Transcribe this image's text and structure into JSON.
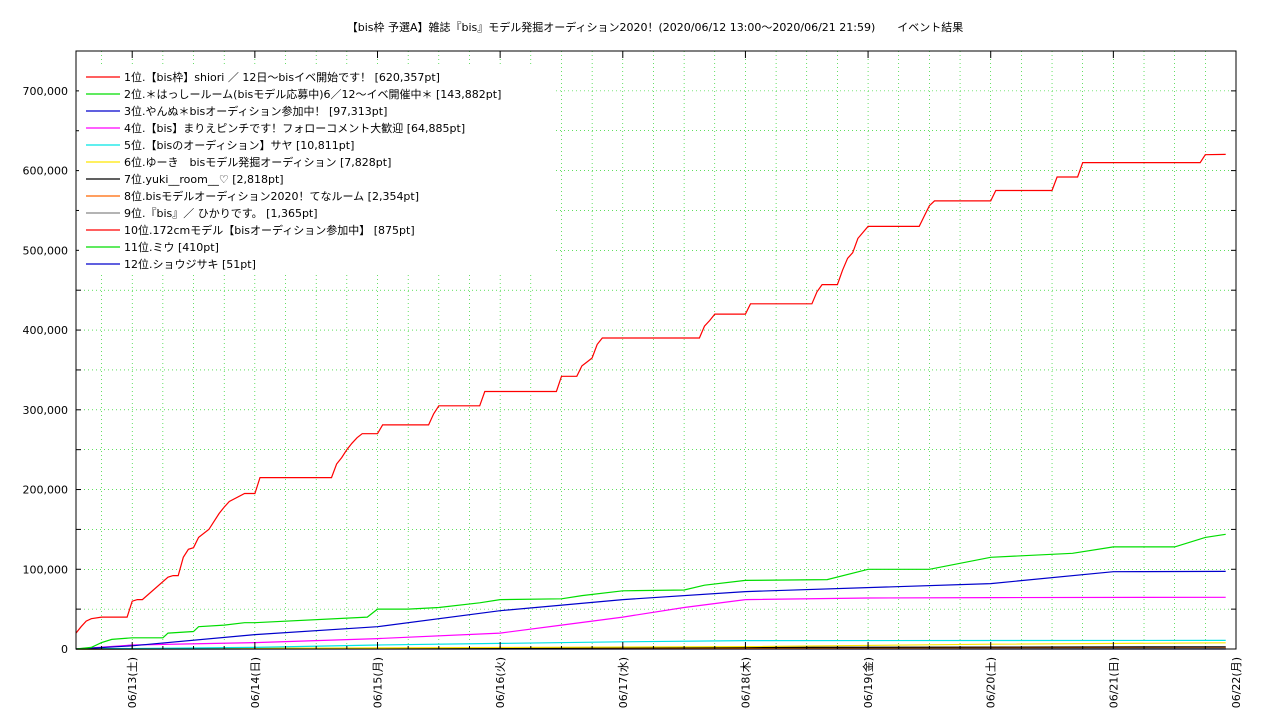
{
  "chart_data": {
    "type": "line",
    "title": "【bis枠 予選A】雑誌『bis』モデル発掘オーディション2020！(2020/06/12 13:00～2020/06/21 21:59)　　イベント結果",
    "xlabel": "",
    "ylabel": "",
    "ylim": [
      0,
      750000
    ],
    "yticks": [
      0,
      100000,
      200000,
      300000,
      400000,
      500000,
      600000,
      700000
    ],
    "ytick_labels": [
      "0",
      "100,000",
      "200,000",
      "300,000",
      "400,000",
      "500,000",
      "600,000",
      "700,000"
    ],
    "xlim": [
      "2020-06-12 13:00",
      "2020-06-22 00:00"
    ],
    "xticks": [
      "2020-06-13 00:00",
      "2020-06-14 00:00",
      "2020-06-15 00:00",
      "2020-06-16 00:00",
      "2020-06-17 00:00",
      "2020-06-18 00:00",
      "2020-06-19 00:00",
      "2020-06-20 00:00",
      "2020-06-21 00:00",
      "2020-06-22 00:00"
    ],
    "xtick_labels": [
      "06/13(土)",
      "06/14(日)",
      "06/15(月)",
      "06/16(火)",
      "06/17(水)",
      "06/18(木)",
      "06/19(金)",
      "06/20(土)",
      "06/21(日)",
      "06/22(月)"
    ],
    "grid": true,
    "legend_position": "top-left",
    "series": [
      {
        "name": "1位.【bis枠】shiori ／ 12日〜bisイベ開始です！ [620,357pt]",
        "color": "#ff0000",
        "x": [
          "2020-06-12 13:00",
          "2020-06-12 14:00",
          "2020-06-12 15:00",
          "2020-06-12 16:00",
          "2020-06-12 18:00",
          "2020-06-12 23:00",
          "2020-06-13 00:00",
          "2020-06-13 01:00",
          "2020-06-13 02:00",
          "2020-06-13 07:00",
          "2020-06-13 08:00",
          "2020-06-13 09:00",
          "2020-06-13 10:00",
          "2020-06-13 11:00",
          "2020-06-13 12:00",
          "2020-06-13 13:00",
          "2020-06-13 15:00",
          "2020-06-13 17:00",
          "2020-06-13 18:00",
          "2020-06-13 19:00",
          "2020-06-13 22:00",
          "2020-06-14 00:00",
          "2020-06-14 01:00",
          "2020-06-14 15:00",
          "2020-06-14 16:00",
          "2020-06-14 17:00",
          "2020-06-14 18:00",
          "2020-06-14 19:00",
          "2020-06-14 20:00",
          "2020-06-14 21:00",
          "2020-06-15 00:00",
          "2020-06-15 01:00",
          "2020-06-15 10:00",
          "2020-06-15 11:00",
          "2020-06-15 12:00",
          "2020-06-15 20:00",
          "2020-06-15 21:00",
          "2020-06-16 00:00",
          "2020-06-16 01:00",
          "2020-06-16 11:00",
          "2020-06-16 12:00",
          "2020-06-16 15:00",
          "2020-06-16 16:00",
          "2020-06-16 17:00",
          "2020-06-16 18:00",
          "2020-06-16 19:00",
          "2020-06-16 20:00",
          "2020-06-17 15:00",
          "2020-06-17 16:00",
          "2020-06-17 17:00",
          "2020-06-17 18:00",
          "2020-06-18 00:00",
          "2020-06-18 01:00",
          "2020-06-18 13:00",
          "2020-06-18 14:00",
          "2020-06-18 15:00",
          "2020-06-18 18:00",
          "2020-06-18 19:00",
          "2020-06-18 20:00",
          "2020-06-18 21:00",
          "2020-06-18 22:00",
          "2020-06-19 00:00",
          "2020-06-19 10:00",
          "2020-06-19 11:00",
          "2020-06-19 12:00",
          "2020-06-19 13:00",
          "2020-06-19 14:00",
          "2020-06-20 00:00",
          "2020-06-20 01:00",
          "2020-06-20 12:00",
          "2020-06-20 13:00",
          "2020-06-20 17:00",
          "2020-06-20 18:00",
          "2020-06-21 17:00",
          "2020-06-21 18:00",
          "2020-06-21 21:59"
        ],
        "values": [
          20000,
          28000,
          35000,
          38000,
          40000,
          40000,
          60000,
          62000,
          62000,
          90000,
          92000,
          92000,
          115000,
          125000,
          127000,
          140000,
          150000,
          170000,
          178000,
          185000,
          195000,
          195000,
          215000,
          215000,
          232000,
          240000,
          250000,
          258000,
          265000,
          270000,
          270000,
          281000,
          281000,
          295000,
          305000,
          305000,
          323000,
          323000,
          323000,
          323000,
          342000,
          342000,
          355000,
          360000,
          365000,
          382000,
          390000,
          390000,
          405000,
          412000,
          420000,
          420000,
          433000,
          433000,
          448000,
          457000,
          457000,
          475000,
          490000,
          497000,
          515000,
          530000,
          530000,
          543000,
          556000,
          562000,
          562000,
          562000,
          575000,
          575000,
          592000,
          592000,
          610000,
          610000,
          620000,
          620357
        ]
      },
      {
        "name": "2位.＊はっしールーム(bisモデル応募中)6／12〜イベ開催中＊ [143,882pt]",
        "color": "#00dd00",
        "x": [
          "2020-06-12 13:00",
          "2020-06-12 16:00",
          "2020-06-12 18:00",
          "2020-06-12 20:00",
          "2020-06-13 00:00",
          "2020-06-13 06:00",
          "2020-06-13 07:00",
          "2020-06-13 12:00",
          "2020-06-13 13:00",
          "2020-06-13 18:00",
          "2020-06-13 22:00",
          "2020-06-14 00:00",
          "2020-06-14 22:00",
          "2020-06-15 00:00",
          "2020-06-15 06:00",
          "2020-06-15 12:00",
          "2020-06-15 20:00",
          "2020-06-16 00:00",
          "2020-06-16 12:00",
          "2020-06-16 16:00",
          "2020-06-17 00:00",
          "2020-06-17 12:00",
          "2020-06-17 16:00",
          "2020-06-18 00:00",
          "2020-06-18 16:00",
          "2020-06-19 00:00",
          "2020-06-19 12:00",
          "2020-06-20 00:00",
          "2020-06-20 16:00",
          "2020-06-21 00:00",
          "2020-06-21 12:00",
          "2020-06-21 18:00",
          "2020-06-21 21:59"
        ],
        "values": [
          0,
          2000,
          8000,
          12000,
          14000,
          14000,
          20000,
          22000,
          28000,
          30000,
          33000,
          33000,
          40000,
          50000,
          50000,
          52000,
          58000,
          62000,
          63000,
          67000,
          73000,
          74000,
          80000,
          86000,
          87000,
          100000,
          100000,
          115000,
          120000,
          128000,
          128000,
          140000,
          143882
        ]
      },
      {
        "name": "3位.やんぬ＊bisオーディション参加中！ [97,313pt]",
        "color": "#0000cc",
        "x": [
          "2020-06-12 13:00",
          "2020-06-13 00:00",
          "2020-06-14 00:00",
          "2020-06-15 00:00",
          "2020-06-16 00:00",
          "2020-06-17 00:00",
          "2020-06-18 00:00",
          "2020-06-20 00:00",
          "2020-06-21 00:00",
          "2020-06-21 21:59"
        ],
        "values": [
          0,
          4000,
          18000,
          28000,
          48000,
          62000,
          72000,
          82000,
          97000,
          97313
        ]
      },
      {
        "name": "4位.【bis】まりえピンチです！フォローコメント大歓迎 [64,885pt]",
        "color": "#ff00ff",
        "x": [
          "2020-06-12 13:00",
          "2020-06-13 00:00",
          "2020-06-14 00:00",
          "2020-06-15 00:00",
          "2020-06-16 00:00",
          "2020-06-16 12:00",
          "2020-06-17 00:00",
          "2020-06-17 12:00",
          "2020-06-18 00:00",
          "2020-06-19 00:00",
          "2020-06-20 00:00",
          "2020-06-21 21:59"
        ],
        "values": [
          0,
          5000,
          8000,
          13000,
          20000,
          30000,
          40000,
          52000,
          62000,
          64000,
          64500,
          64885
        ]
      },
      {
        "name": "5位.【bisのオーディション】サヤ [10,811pt]",
        "color": "#00e5e5",
        "x": [
          "2020-06-12 13:00",
          "2020-06-14 00:00",
          "2020-06-15 00:00",
          "2020-06-16 00:00",
          "2020-06-17 00:00",
          "2020-06-18 00:00",
          "2020-06-21 21:59"
        ],
        "values": [
          0,
          2000,
          5000,
          7000,
          9000,
          10500,
          10811
        ]
      },
      {
        "name": "6位.ゆーき　bisモデル発掘オーディション [7,828pt]",
        "color": "#ffe600",
        "x": [
          "2020-06-12 13:00",
          "2020-06-18 00:00",
          "2020-06-20 00:00",
          "2020-06-21 21:59"
        ],
        "values": [
          0,
          3000,
          6000,
          7828
        ]
      },
      {
        "name": "7位.yuki__room__♡ [2,818pt]",
        "color": "#000000",
        "x": [
          "2020-06-12 13:00",
          "2020-06-18 00:00",
          "2020-06-21 21:59"
        ],
        "values": [
          0,
          2000,
          2818
        ]
      },
      {
        "name": "8位.bisモデルオーディション2020！てなルーム [2,354pt]",
        "color": "#ff6600",
        "x": [
          "2020-06-12 13:00",
          "2020-06-19 00:00",
          "2020-06-21 21:59"
        ],
        "values": [
          0,
          1500,
          2354
        ]
      },
      {
        "name": "9位.『bis』／ ひかりです。 [1,365pt]",
        "color": "#888888",
        "x": [
          "2020-06-12 13:00",
          "2020-06-20 00:00",
          "2020-06-21 21:59"
        ],
        "values": [
          0,
          1000,
          1365
        ]
      },
      {
        "name": "10位.172cmモデル【bisオーディション参加中】 [875pt]",
        "color": "#ff0000",
        "x": [
          "2020-06-12 13:00",
          "2020-06-21 21:59"
        ],
        "values": [
          0,
          875
        ]
      },
      {
        "name": "11位.ミウ [410pt]",
        "color": "#00dd00",
        "x": [
          "2020-06-12 13:00",
          "2020-06-21 21:59"
        ],
        "values": [
          0,
          410
        ]
      },
      {
        "name": "12位.ショウジサキ [51pt]",
        "color": "#0000cc",
        "x": [
          "2020-06-12 13:00",
          "2020-06-21 21:59"
        ],
        "values": [
          0,
          51
        ]
      }
    ]
  }
}
